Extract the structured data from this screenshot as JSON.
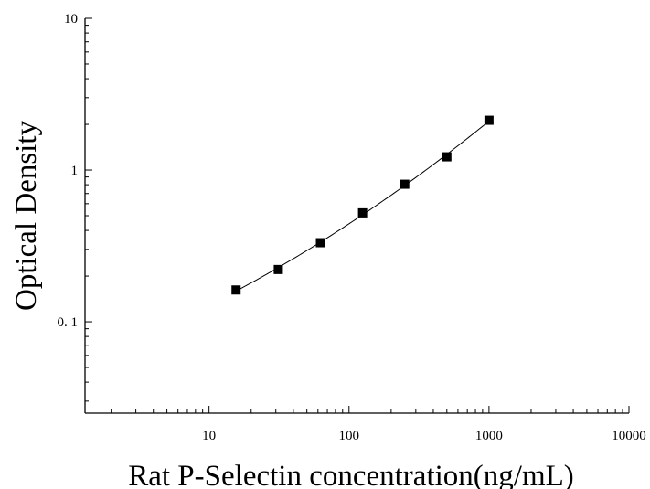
{
  "chart_data": {
    "type": "scatter",
    "title": "",
    "xlabel": "Rat P-Selectin concentration(ng/mL)",
    "ylabel": "Optical Density",
    "x_scale": "log",
    "y_scale": "log",
    "xlim": [
      1.3,
      10000
    ],
    "ylim": [
      0.025,
      10
    ],
    "x_ticks": [
      10,
      100,
      1000,
      10000
    ],
    "x_tick_labels": [
      "10",
      "100",
      "1000",
      "10000"
    ],
    "y_ticks": [
      0.1,
      1,
      10
    ],
    "y_tick_labels": [
      "0. 1",
      "1",
      "10"
    ],
    "grid": false,
    "legend": "none",
    "marker": "square",
    "marker_color": "#000000",
    "fit_curve": true,
    "series": [
      {
        "x": [
          15.6,
          31.25,
          62.5,
          125,
          250,
          500,
          1000
        ],
        "y": [
          0.162,
          0.221,
          0.332,
          0.522,
          0.806,
          1.222,
          2.128
        ]
      }
    ]
  }
}
